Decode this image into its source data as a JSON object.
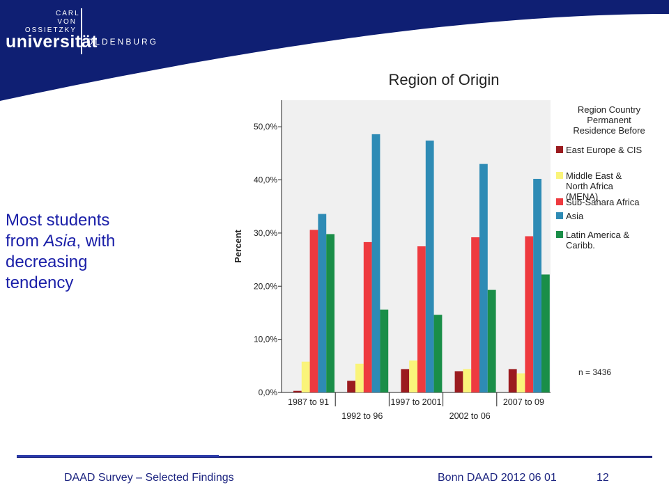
{
  "logo": {
    "line1": "CARL",
    "line2": "VON",
    "line3": "OSSIETZKY",
    "university": "universität",
    "city": "OLDENBURG"
  },
  "colors": {
    "header_blue": "#0f1f73",
    "text_blue": "#1a1fa8"
  },
  "side_text": {
    "line1": "Most students",
    "line2_pre": "from ",
    "line2_em": "Asia",
    "line2_post": ", with",
    "line3": "decreasing",
    "line4": "tendency"
  },
  "footer": {
    "left": "DAAD Survey – Selected Findings",
    "right": "Bonn DAAD 2012 06 01",
    "page": "12"
  },
  "chart_data": {
    "type": "bar",
    "title": "Region of Origin",
    "ylabel": "Percent",
    "xlabel": "",
    "ylim": [
      0,
      55
    ],
    "yticks": [
      "0,0%",
      "10,0%",
      "20,0%",
      "30,0%",
      "40,0%",
      "50,0%"
    ],
    "categories": [
      "1987 to 91",
      "1992 to 96",
      "1997 to 2001",
      "2002 to 06",
      "2007 to 09"
    ],
    "legend_title": [
      "Region Country",
      "Permanent",
      "Residence Before"
    ],
    "legend_position": "right",
    "series": [
      {
        "name": "East Europe & CIS",
        "color": "#9b1b1f",
        "values": [
          0.3,
          2.2,
          4.4,
          4.0,
          4.4
        ]
      },
      {
        "name": "Middle East & North Africa (MENA)",
        "color": "#faf47a",
        "values": [
          5.8,
          5.4,
          6.0,
          4.4,
          3.6
        ]
      },
      {
        "name": "Sub-Sahara Africa",
        "color": "#ee3a3f",
        "values": [
          30.6,
          28.3,
          27.5,
          29.2,
          29.4
        ]
      },
      {
        "name": "Asia",
        "color": "#2e8bb5",
        "values": [
          33.6,
          48.6,
          47.4,
          43.0,
          40.2
        ]
      },
      {
        "name": "Latin America & Caribb.",
        "color": "#1a8e48",
        "values": [
          29.8,
          15.6,
          14.6,
          19.3,
          22.2
        ]
      }
    ],
    "legend_labels": [
      [
        "East Europe & CIS"
      ],
      [
        "Middle East &",
        "North Africa",
        "(MENA)"
      ],
      [
        "Sub-Sahara Africa"
      ],
      [
        "Asia"
      ],
      [
        "Latin America &",
        "Caribb."
      ]
    ],
    "annotation": "n = 3436"
  }
}
